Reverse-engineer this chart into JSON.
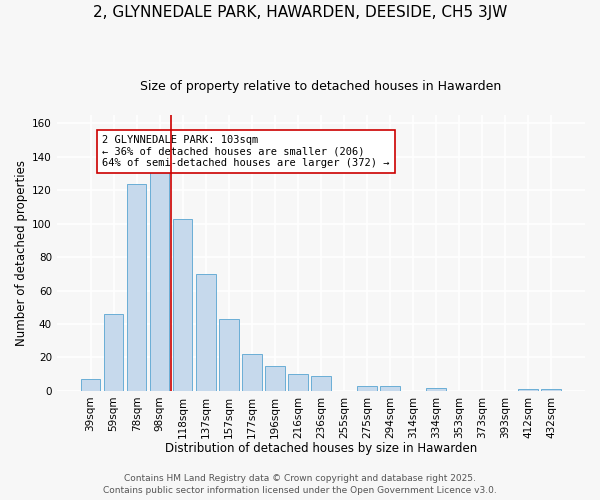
{
  "title": "2, GLYNNEDALE PARK, HAWARDEN, DEESIDE, CH5 3JW",
  "subtitle": "Size of property relative to detached houses in Hawarden",
  "xlabel": "Distribution of detached houses by size in Hawarden",
  "ylabel": "Number of detached properties",
  "bar_labels": [
    "39sqm",
    "59sqm",
    "78sqm",
    "98sqm",
    "118sqm",
    "137sqm",
    "157sqm",
    "177sqm",
    "196sqm",
    "216sqm",
    "236sqm",
    "255sqm",
    "275sqm",
    "294sqm",
    "314sqm",
    "334sqm",
    "353sqm",
    "373sqm",
    "393sqm",
    "412sqm",
    "432sqm"
  ],
  "bar_values": [
    7,
    46,
    124,
    131,
    103,
    70,
    43,
    22,
    15,
    10,
    9,
    0,
    3,
    3,
    0,
    2,
    0,
    0,
    0,
    1,
    1
  ],
  "bar_color": "#c6d9ec",
  "bar_edge_color": "#6aaed6",
  "ylim": [
    0,
    165
  ],
  "yticks": [
    0,
    20,
    40,
    60,
    80,
    100,
    120,
    140,
    160
  ],
  "vline_x": 3.5,
  "vline_color": "#cc0000",
  "annotation_text": "2 GLYNNEDALE PARK: 103sqm\n← 36% of detached houses are smaller (206)\n64% of semi-detached houses are larger (372) →",
  "annotation_box_color": "#ffffff",
  "annotation_box_edge": "#cc0000",
  "footer_line1": "Contains HM Land Registry data © Crown copyright and database right 2025.",
  "footer_line2": "Contains public sector information licensed under the Open Government Licence v3.0.",
  "background_color": "#f7f7f7",
  "title_fontsize": 11,
  "subtitle_fontsize": 9,
  "xlabel_fontsize": 8.5,
  "ylabel_fontsize": 8.5,
  "tick_fontsize": 7.5,
  "annotation_fontsize": 7.5,
  "footer_fontsize": 6.5
}
